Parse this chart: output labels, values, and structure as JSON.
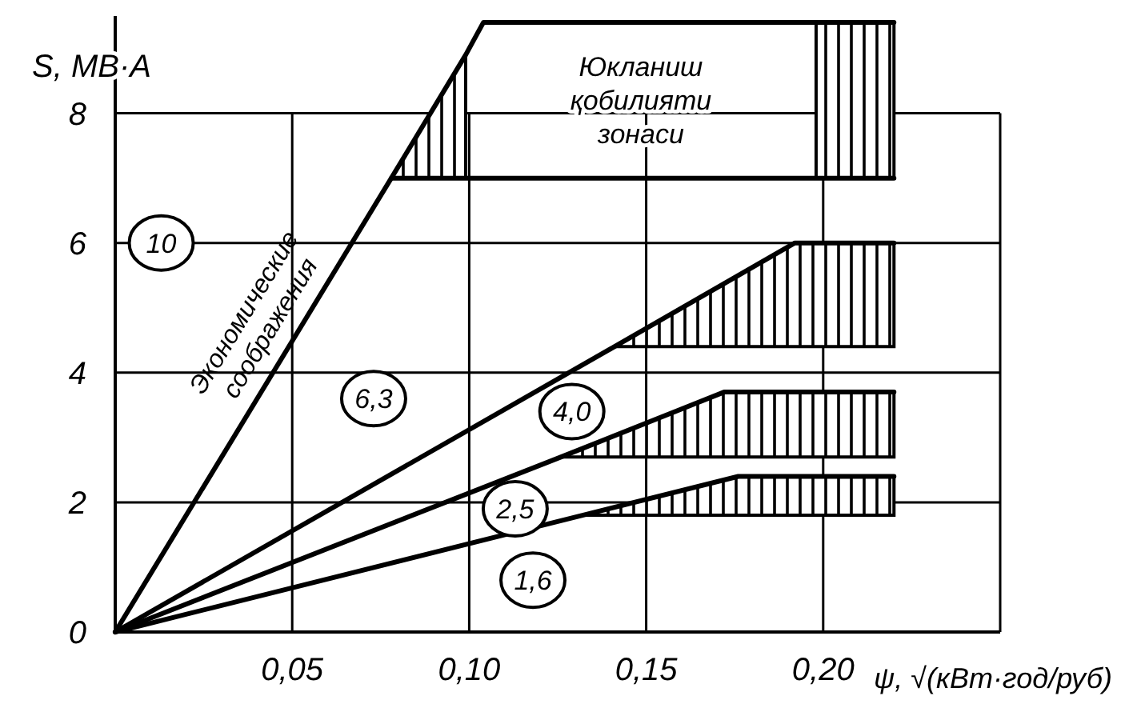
{
  "chart_data": {
    "type": "line",
    "xlabel": "ψ, √(кВт·год/руб)",
    "ylabel": "S, МВ·А",
    "xlim": [
      0,
      0.25
    ],
    "ylim": [
      0,
      9.5
    ],
    "xticks": [
      {
        "value": 0.05,
        "label": "0,05"
      },
      {
        "value": 0.1,
        "label": "0,10"
      },
      {
        "value": 0.15,
        "label": "0,15"
      },
      {
        "value": 0.2,
        "label": "0,20"
      }
    ],
    "yticks": [
      0,
      2,
      4,
      6,
      8
    ],
    "grid": true,
    "line_style": "solid",
    "series": [
      {
        "color": "#000000",
        "x": [
          0,
          0.078,
          0.099,
          0.104,
          0.198,
          0.22
        ],
        "values": [
          0,
          7.0,
          8.9,
          9.4,
          9.4,
          9.4
        ],
        "lower": [
          null,
          7.0,
          7.0,
          null,
          7.0,
          7.0
        ],
        "upper": [
          null,
          7.0,
          8.9,
          null,
          9.4,
          9.4
        ]
      },
      {
        "color": "#000000",
        "x": [
          0.078,
          0.22
        ],
        "values": [
          7.0,
          7.0
        ]
      },
      {
        "color": "#000000",
        "x": [
          0,
          0.141,
          0.192,
          0.22
        ],
        "values": [
          0,
          4.4,
          6.0,
          6.0
        ],
        "lower": [
          null,
          4.4,
          4.4,
          4.4
        ],
        "upper": [
          null,
          4.4,
          6.0,
          6.0
        ]
      },
      {
        "color": "#000000",
        "x": [
          0,
          0.126,
          0.172,
          0.22
        ],
        "values": [
          0,
          2.7,
          3.7,
          3.7
        ],
        "lower": [
          null,
          2.7,
          2.7,
          2.7
        ],
        "upper": [
          null,
          2.7,
          3.7,
          3.7
        ]
      },
      {
        "color": "#000000",
        "x": [
          0,
          0.132,
          0.176,
          0.22
        ],
        "values": [
          0,
          1.8,
          2.4,
          2.4
        ],
        "lower": [
          null,
          1.8,
          1.8,
          1.8
        ],
        "upper": [
          null,
          1.8,
          2.4,
          2.4
        ]
      }
    ],
    "annotations": [
      {
        "text": "10",
        "x": 0.013,
        "y": 6.0
      },
      {
        "text": "6,3",
        "x": 0.073,
        "y": 3.6
      },
      {
        "text": "4,0",
        "x": 0.129,
        "y": 3.4
      },
      {
        "text": "2,5",
        "x": 0.113,
        "y": 1.9
      },
      {
        "text": "1,6",
        "x": 0.118,
        "y": 0.8
      },
      "Экономические\nсоображения",
      "Юкланиш\nқобилияти\nзонаси"
    ]
  }
}
